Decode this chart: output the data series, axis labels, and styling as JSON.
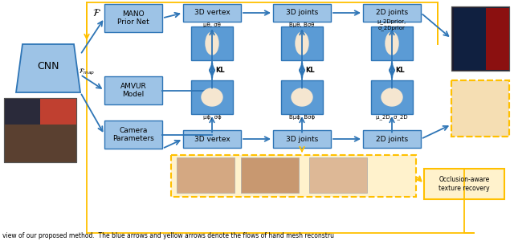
{
  "caption": "view of our proposed method.  The blue arrows and yellow arrows denote the flows of hand mesh reconstru",
  "bg_color": "#ffffff",
  "blue_mid": "#5b9bd5",
  "blue_light": "#9dc3e6",
  "blue_dark": "#2e75b6",
  "yellow": "#ffc000",
  "yellow_light": "#fff2cc",
  "mano_label": "MANO\nPrior Net",
  "amvur_label": "AMVUR\nModel",
  "cam_label": "Camera\nParameters",
  "vtx3d": "3D vertex",
  "jts3d": "3D joints",
  "jts2d": "2D joints",
  "mu_v_top": "μθ, σθ",
  "mu_j_top": "Bμθ, Bσθ",
  "mu_2_top": "μ_2Dprior,\nσ_2Dprior",
  "mu_v_bot": "μϕ, σϕ",
  "mu_j_bot": "Bμϕ, Bσϕ",
  "mu_2_bot": "μ_2D, σ_2D",
  "kl": "KL",
  "occ_label": "Occlusion-aware\ntexture recovery"
}
